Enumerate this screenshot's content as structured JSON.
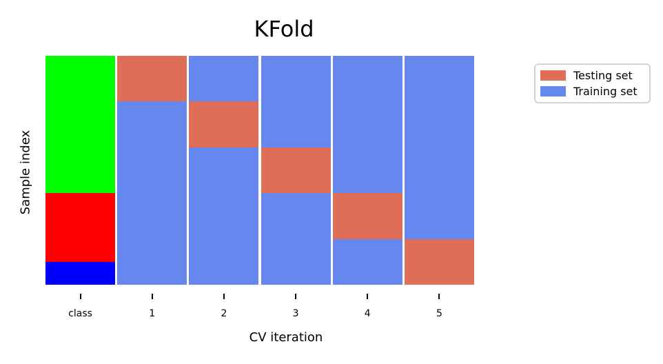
{
  "title": "KFold",
  "xlabel": "CV iteration",
  "ylabel": "Sample index",
  "legend": {
    "items": [
      {
        "label": "Testing set",
        "color": "#DF6E58"
      },
      {
        "label": "Training set",
        "color": "#6687EE"
      }
    ]
  },
  "chart_data": {
    "type": "heatmap",
    "title": "KFold",
    "xlabel": "CV iteration",
    "ylabel": "Sample index",
    "x_tick_labels": [
      "class",
      "1",
      "2",
      "3",
      "4",
      "5"
    ],
    "n_splits": 5,
    "y_direction": "sample index 0 at top, increasing downward",
    "legend_position": "outside upper right",
    "grid": false,
    "colors": {
      "testing": "#DF6E58",
      "training": "#6687EE",
      "class_green": "#00FF00",
      "class_red": "#FF0000",
      "class_blue": "#0000FF"
    },
    "columns": [
      {
        "label": "class",
        "segments": [
          {
            "name": "class-group-green",
            "color_key": "class_green",
            "from_pct": 0,
            "to_pct": 60
          },
          {
            "name": "class-group-red",
            "color_key": "class_red",
            "from_pct": 60,
            "to_pct": 90
          },
          {
            "name": "class-group-blue",
            "color_key": "class_blue",
            "from_pct": 90,
            "to_pct": 100
          }
        ]
      },
      {
        "label": "1",
        "segments": [
          {
            "name": "testing-fold-1",
            "color_key": "testing",
            "from_pct": 0,
            "to_pct": 20
          },
          {
            "name": "training-fold-1",
            "color_key": "training",
            "from_pct": 20,
            "to_pct": 100
          }
        ]
      },
      {
        "label": "2",
        "segments": [
          {
            "name": "training-fold-2-upper",
            "color_key": "training",
            "from_pct": 0,
            "to_pct": 20
          },
          {
            "name": "testing-fold-2",
            "color_key": "testing",
            "from_pct": 20,
            "to_pct": 40
          },
          {
            "name": "training-fold-2-lower",
            "color_key": "training",
            "from_pct": 40,
            "to_pct": 100
          }
        ]
      },
      {
        "label": "3",
        "segments": [
          {
            "name": "training-fold-3-upper",
            "color_key": "training",
            "from_pct": 0,
            "to_pct": 40
          },
          {
            "name": "testing-fold-3",
            "color_key": "testing",
            "from_pct": 40,
            "to_pct": 60
          },
          {
            "name": "training-fold-3-lower",
            "color_key": "training",
            "from_pct": 60,
            "to_pct": 100
          }
        ]
      },
      {
        "label": "4",
        "segments": [
          {
            "name": "training-fold-4-upper",
            "color_key": "training",
            "from_pct": 0,
            "to_pct": 60
          },
          {
            "name": "testing-fold-4",
            "color_key": "testing",
            "from_pct": 60,
            "to_pct": 80
          },
          {
            "name": "training-fold-4-lower",
            "color_key": "training",
            "from_pct": 80,
            "to_pct": 100
          }
        ]
      },
      {
        "label": "5",
        "segments": [
          {
            "name": "training-fold-5",
            "color_key": "training",
            "from_pct": 0,
            "to_pct": 80
          },
          {
            "name": "testing-fold-5",
            "color_key": "testing",
            "from_pct": 80,
            "to_pct": 100
          }
        ]
      }
    ]
  }
}
